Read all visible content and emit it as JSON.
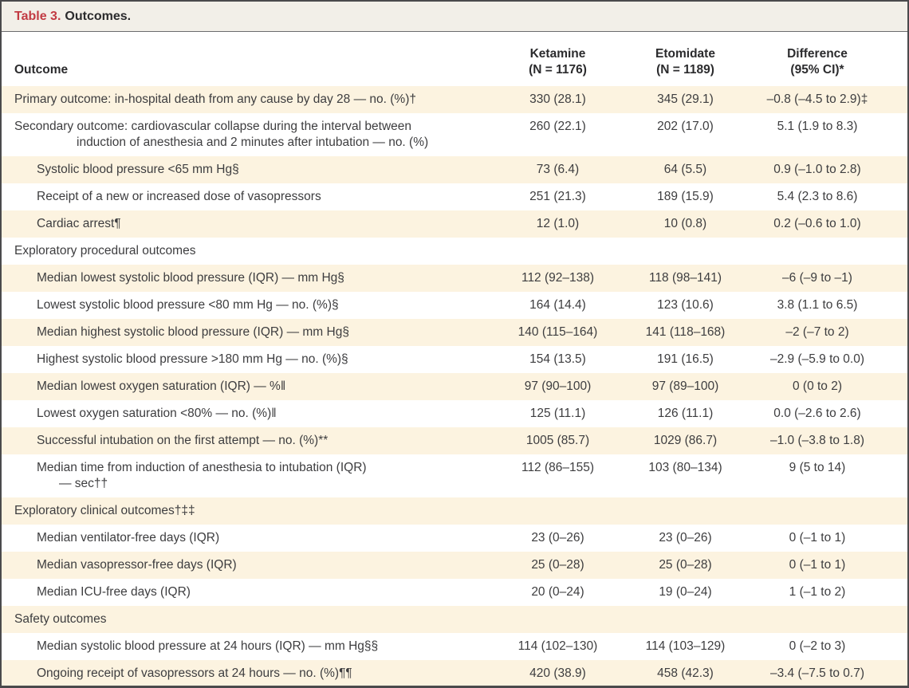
{
  "title": {
    "label": "Table 3.",
    "rest": "Outcomes."
  },
  "header": {
    "outcome": "Outcome",
    "ketamine": {
      "line1": "Ketamine",
      "line2": "(N = 1176)"
    },
    "etomidate": {
      "line1": "Etomidate",
      "line2": "(N = 1189)"
    },
    "difference": {
      "line1": "Difference",
      "line2": "(95% CI)*"
    }
  },
  "colors": {
    "accent_red": "#c23b43",
    "title_bar_bg": "#f2efe8",
    "row_shade": "#fcf3e0",
    "border": "#4a4a4c",
    "text": "#3d3d3f"
  },
  "table": {
    "rows": [
      {
        "label": "Primary outcome: in-hospital death from any cause by day 28 — no. (%)†",
        "indent": 0,
        "section": false,
        "ketamine": "330 (28.1)",
        "etomidate": "345 (29.1)",
        "difference": "–0.8 (–4.5 to 2.9)‡"
      },
      {
        "label": "Secondary outcome: cardiovascular collapse during the interval between",
        "label2": "induction of anesthesia and 2 minutes after intubation — no. (%)",
        "indent": 0,
        "section": false,
        "ketamine": "260 (22.1)",
        "etomidate": "202 (17.0)",
        "difference": "5.1 (1.9 to 8.3)"
      },
      {
        "label": "Systolic blood pressure <65 mm Hg§",
        "indent": 1,
        "section": false,
        "ketamine": "73 (6.4)",
        "etomidate": "64 (5.5)",
        "difference": "0.9 (–1.0 to 2.8)"
      },
      {
        "label": "Receipt of a new or increased dose of vasopressors",
        "indent": 1,
        "section": false,
        "ketamine": "251 (21.3)",
        "etomidate": "189 (15.9)",
        "difference": "5.4 (2.3 to 8.6)"
      },
      {
        "label": "Cardiac arrest¶",
        "indent": 1,
        "section": false,
        "ketamine": "12 (1.0)",
        "etomidate": "10 (0.8)",
        "difference": "0.2 (–0.6 to 1.0)"
      },
      {
        "label": "Exploratory procedural outcomes",
        "indent": 0,
        "section": true
      },
      {
        "label": "Median lowest systolic blood pressure (IQR) — mm Hg§",
        "indent": 1,
        "section": false,
        "ketamine": "112 (92–138)",
        "etomidate": "118 (98–141)",
        "difference": "–6 (–9 to –1)"
      },
      {
        "label": "Lowest systolic blood pressure <80 mm Hg — no. (%)§",
        "indent": 1,
        "section": false,
        "ketamine": "164 (14.4)",
        "etomidate": "123 (10.6)",
        "difference": "3.8 (1.1 to 6.5)"
      },
      {
        "label": "Median highest systolic blood pressure (IQR) — mm Hg§",
        "indent": 1,
        "section": false,
        "ketamine": "140 (115–164)",
        "etomidate": "141 (118–168)",
        "difference": "–2 (–7 to 2)"
      },
      {
        "label": "Highest systolic blood pressure >180 mm Hg — no. (%)§",
        "indent": 1,
        "section": false,
        "ketamine": "154 (13.5)",
        "etomidate": "191 (16.5)",
        "difference": "–2.9 (–5.9 to 0.0)"
      },
      {
        "label": "Median lowest oxygen saturation (IQR) — %‖",
        "indent": 1,
        "section": false,
        "ketamine": "97 (90–100)",
        "etomidate": "97 (89–100)",
        "difference": "0 (0 to 2)"
      },
      {
        "label": "Lowest oxygen saturation <80% — no. (%)‖",
        "indent": 1,
        "section": false,
        "ketamine": "125 (11.1)",
        "etomidate": "126 (11.1)",
        "difference": "0.0 (–2.6 to 2.6)"
      },
      {
        "label": "Successful intubation on the first attempt — no. (%)**",
        "indent": 1,
        "section": false,
        "ketamine": "1005 (85.7)",
        "etomidate": "1029 (86.7)",
        "difference": "–1.0 (–3.8 to 1.8)"
      },
      {
        "label": "Median time from induction of anesthesia to intubation (IQR)",
        "label2": "— sec††",
        "indent": 1,
        "section": false,
        "ketamine": "112 (86–155)",
        "etomidate": "103 (80–134)",
        "difference": "9 (5 to 14)"
      },
      {
        "label": "Exploratory clinical outcomes†‡‡",
        "indent": 0,
        "section": true
      },
      {
        "label": "Median ventilator-free days (IQR)",
        "indent": 1,
        "section": false,
        "ketamine": "23 (0–26)",
        "etomidate": "23 (0–26)",
        "difference": "0 (–1 to 1)"
      },
      {
        "label": "Median vasopressor-free days (IQR)",
        "indent": 1,
        "section": false,
        "ketamine": "25 (0–28)",
        "etomidate": "25 (0–28)",
        "difference": "0 (–1 to 1)"
      },
      {
        "label": "Median ICU-free days (IQR)",
        "indent": 1,
        "section": false,
        "ketamine": "20 (0–24)",
        "etomidate": "19 (0–24)",
        "difference": "1 (–1 to 2)"
      },
      {
        "label": "Safety outcomes",
        "indent": 0,
        "section": true
      },
      {
        "label": "Median systolic blood pressure at 24 hours (IQR) — mm Hg§§",
        "indent": 1,
        "section": false,
        "ketamine": "114 (102–130)",
        "etomidate": "114 (103–129)",
        "difference": "0 (–2 to 3)"
      },
      {
        "label": "Ongoing receipt of vasopressors at 24 hours — no. (%)¶¶",
        "indent": 1,
        "section": false,
        "ketamine": "420 (38.9)",
        "etomidate": "458 (42.3)",
        "difference": "–3.4 (–7.5 to 0.7)"
      }
    ]
  }
}
